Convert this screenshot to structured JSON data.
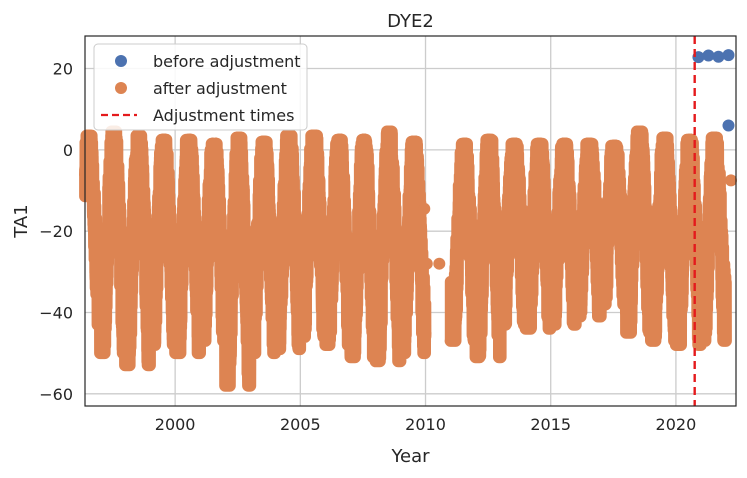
{
  "chart_data": {
    "type": "scatter",
    "title": "DYE2",
    "xlabel": "Year",
    "ylabel": "TA1",
    "xlim": [
      1996.4,
      2022.4
    ],
    "ylim": [
      -63,
      28
    ],
    "xticks": [
      2000,
      2005,
      2010,
      2015,
      2020
    ],
    "xtick_labels": [
      "2000",
      "2005",
      "2010",
      "2015",
      "2020"
    ],
    "yticks": [
      20,
      0,
      -20,
      -40,
      -60
    ],
    "ytick_labels": [
      "20",
      "0",
      "−20",
      "−40",
      "−60"
    ],
    "grid": true,
    "legend_position": "top-left",
    "series": [
      {
        "name": "before adjustment",
        "color": "#4c72b0",
        "marker": "circle",
        "x": [
          2020.9,
          2021.3,
          2021.7,
          2022.1,
          2022.1
        ],
        "y": [
          22.8,
          23.2,
          22.9,
          23.3,
          6.0
        ]
      },
      {
        "name": "after adjustment",
        "color": "#dd8452",
        "marker": "circle",
        "seasonal_envelope": {
          "years": [
            1996,
            1997,
            1998,
            1999,
            2000,
            2001,
            2002,
            2003,
            2004,
            2005,
            2006,
            2007,
            2008,
            2009,
            2011,
            2012,
            2013,
            2014,
            2015,
            2016,
            2017,
            2018,
            2019,
            2020,
            2021
          ],
          "summer_max": [
            3.5,
            4.5,
            3.5,
            2.5,
            2.5,
            1.5,
            3.0,
            2.0,
            3.5,
            3.5,
            2.5,
            2.5,
            4.5,
            2.0,
            1.5,
            2.5,
            1.5,
            1.5,
            1.5,
            1.5,
            1.0,
            4.5,
            3.0,
            2.5,
            3.0
          ],
          "winter_min": [
            -43,
            -50,
            -53,
            -48,
            -50,
            -47,
            -58,
            -50,
            -49,
            -46,
            -48,
            -51,
            -52,
            -50,
            -47,
            -51,
            -43,
            -44,
            -43,
            -41,
            -38,
            -45,
            -47,
            -48,
            -47
          ]
        },
        "isolated_points": {
          "x": [
            2009.95,
            2010.05,
            2010.55,
            2022.2
          ],
          "y": [
            -14.5,
            -28,
            -28,
            -7.5
          ]
        }
      }
    ],
    "vertical_lines": [
      {
        "name": "Adjustment times",
        "x": 2020.75,
        "color": "#e41a1c",
        "style": "dashed"
      }
    ]
  }
}
